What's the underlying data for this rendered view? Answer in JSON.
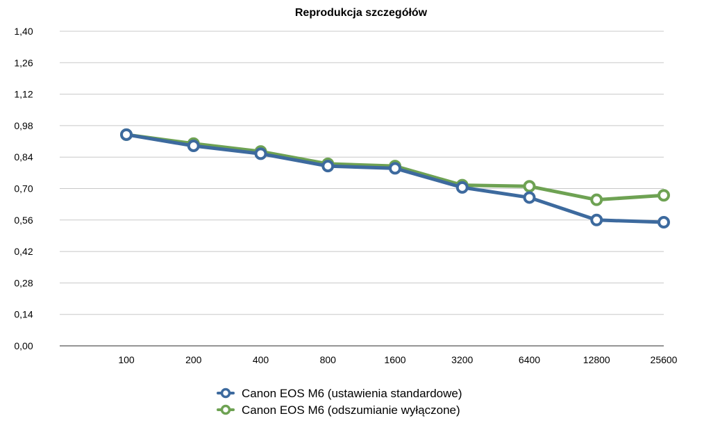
{
  "chart_data": {
    "type": "line",
    "title": "Reprodukcja szczegółów",
    "xlabel": "",
    "ylabel": "",
    "categories": [
      "100",
      "200",
      "400",
      "800",
      "1600",
      "3200",
      "6400",
      "12800",
      "25600"
    ],
    "y_ticks": [
      "0,00",
      "0,14",
      "0,28",
      "0,42",
      "0,56",
      "0,70",
      "0,84",
      "0,98",
      "1,12",
      "1,26",
      "1,40"
    ],
    "ylim": [
      0,
      1.4
    ],
    "grid": true,
    "legend_position": "bottom",
    "series": [
      {
        "name": "Canon EOS M6 (ustawienia standardowe)",
        "color": "#3d6a9e",
        "values": [
          0.94,
          0.89,
          0.855,
          0.8,
          0.79,
          0.705,
          0.66,
          0.56,
          0.55
        ]
      },
      {
        "name": "Canon EOS M6 (odszumianie wyłączone)",
        "color": "#6ea253",
        "values": [
          0.94,
          0.9,
          0.865,
          0.81,
          0.8,
          0.715,
          0.71,
          0.65,
          0.67
        ]
      }
    ]
  }
}
